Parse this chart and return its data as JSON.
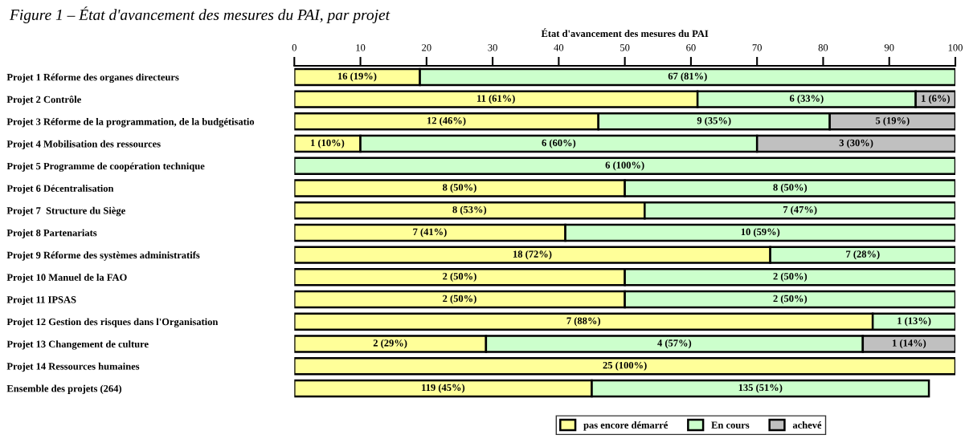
{
  "chart_data": {
    "type": "bar",
    "orientation": "horizontal",
    "stacked": true,
    "title": "État d'avancement des mesures du PAI",
    "annotations": [
      "Figure 1 – État d'avancement des mesures du PAI, par projet"
    ],
    "categories": [
      "Projet 1 Réforme des organes directeurs",
      "Projet 2 Contrôle",
      "Projet 3 Réforme de la programmation, de la budgétisatio",
      "Projet 4 Mobilisation des ressources",
      "Projet 5 Programme de coopération technique",
      "Projet 6 Décentralisation",
      "Projet 7  Structure du Siège",
      "Projet 8 Partenariats",
      "Projet 9 Réforme des systèmes administratifs",
      "Projet 10 Manuel de la FAO",
      "Projet 11 IPSAS",
      "Projet 12 Gestion des risques dans l'Organisation",
      "Projet 13 Changement de culture",
      "Projet 14 Ressources humaines",
      "Ensemble des projets (264)"
    ],
    "series": [
      {
        "name": "pas encore démarré",
        "color": "#ffff99",
        "values": [
          19,
          61,
          46,
          10,
          null,
          50,
          53,
          41,
          72,
          50,
          50,
          87.5,
          29,
          100,
          45
        ],
        "value_labels": [
          "16 (19%)",
          "11 (61%)",
          "12 (46%)",
          "1 (10%)",
          null,
          "8 (50%)",
          "8 (53%)",
          "7 (41%)",
          "18 (72%)",
          "2 (50%)",
          "2 (50%)",
          "7 (88%)",
          "2 (29%)",
          "25 (100%)",
          "119 (45%)"
        ]
      },
      {
        "name": "En cours",
        "color": "#ccffcc",
        "values": [
          81,
          33,
          35,
          60,
          100,
          50,
          47,
          59,
          28,
          50,
          50,
          12.5,
          57,
          null,
          51
        ],
        "value_labels": [
          "67 (81%)",
          "6 (33%)",
          "9 (35%)",
          "6 (60%)",
          "6 (100%)",
          "8 (50%)",
          "7 (47%)",
          "10 (59%)",
          "7 (28%)",
          "2 (50%)",
          "2 (50%)",
          "1 (13%)",
          "4 (57%)",
          null,
          "135 (51%)"
        ]
      },
      {
        "name": "achevé",
        "color": "#c0c0c0",
        "values": [
          null,
          6,
          19,
          30,
          null,
          null,
          null,
          null,
          null,
          null,
          null,
          null,
          14,
          null,
          null
        ],
        "value_labels": [
          null,
          "1 (6%)",
          "5 (19%)",
          "3 (30%)",
          null,
          null,
          null,
          null,
          null,
          null,
          null,
          null,
          "1 (14%)",
          null,
          null
        ]
      }
    ],
    "xlim": [
      0,
      100
    ],
    "xticks": [
      0,
      10,
      20,
      30,
      40,
      50,
      60,
      70,
      80,
      90,
      100
    ],
    "grid": false,
    "legend": "bottom"
  }
}
